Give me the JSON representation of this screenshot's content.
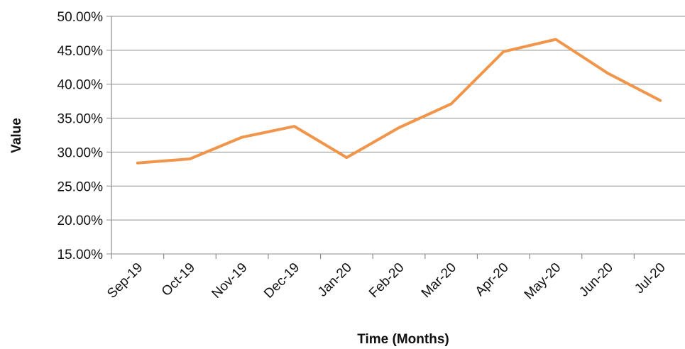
{
  "chart_data": {
    "type": "line",
    "title": "",
    "xlabel": "Time (Months)",
    "ylabel": "Value",
    "categories": [
      "Sep-19",
      "Oct-19",
      "Nov-19",
      "Dec-19",
      "Jan-20",
      "Feb-20",
      "Mar-20",
      "Apr-20",
      "May-20",
      "Jun-20",
      "Jul-20"
    ],
    "series": [
      {
        "values": [
          0.284,
          0.29,
          0.322,
          0.338,
          0.292,
          0.336,
          0.371,
          0.448,
          0.466,
          0.416,
          0.376
        ],
        "color": "#F0954A"
      }
    ],
    "ylim": [
      0.15,
      0.5
    ],
    "yticks": [
      0.15,
      0.2,
      0.25,
      0.3,
      0.35,
      0.4,
      0.45,
      0.5
    ],
    "ytick_labels": [
      "15.00%",
      "20.00%",
      "25.00%",
      "30.00%",
      "35.00%",
      "40.00%",
      "45.00%",
      "50.00%"
    ],
    "grid": true,
    "legend": "none",
    "gridline_color": "#8C8C8C"
  }
}
